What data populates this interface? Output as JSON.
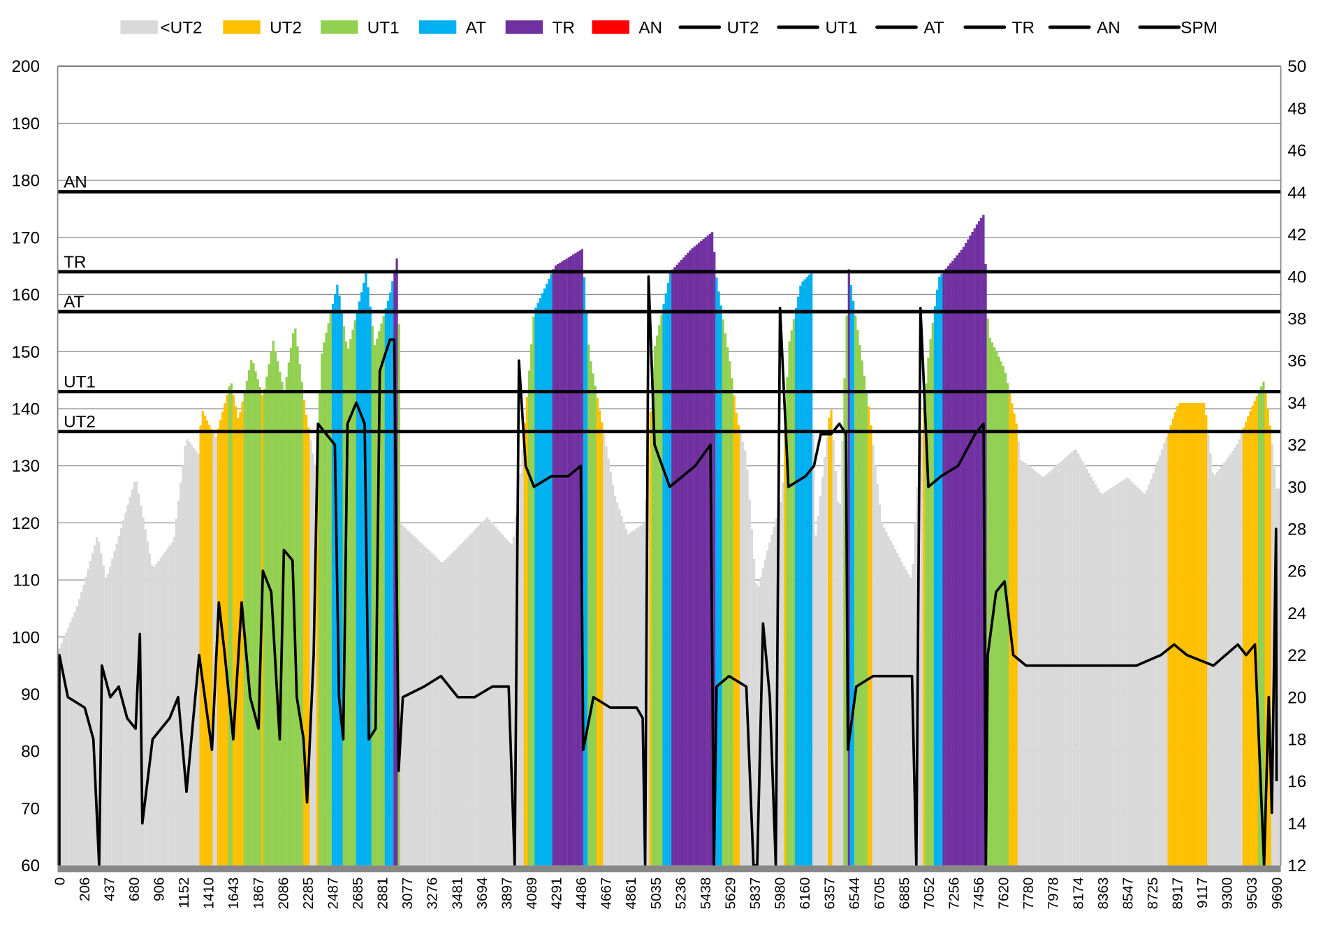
{
  "chart_data": {
    "type": "bar",
    "title": "",
    "xlabel": "",
    "ylabel": "",
    "y2label": "",
    "ylim": [
      60,
      200
    ],
    "y2lim": [
      12,
      50
    ],
    "yticks": [
      60,
      70,
      80,
      90,
      100,
      110,
      120,
      130,
      140,
      150,
      160,
      170,
      180,
      190,
      200
    ],
    "y2ticks": [
      12,
      14,
      16,
      18,
      20,
      22,
      24,
      26,
      28,
      30,
      32,
      34,
      36,
      38,
      40,
      42,
      44,
      46,
      48,
      50
    ],
    "x_tick_labels": [
      0,
      206,
      437,
      680,
      906,
      1152,
      1410,
      1643,
      1867,
      2086,
      2285,
      2487,
      2685,
      2881,
      3077,
      3276,
      3481,
      3694,
      3897,
      4089,
      4291,
      4486,
      4667,
      4861,
      5035,
      5236,
      5438,
      5629,
      5837,
      5980,
      6160,
      6357,
      6544,
      6705,
      6885,
      7052,
      7256,
      7456,
      7620,
      7780,
      7978,
      8174,
      8363,
      8547,
      8725,
      8917,
      9117,
      9300,
      9503,
      9690
    ],
    "grid": true,
    "legend_position": "top",
    "legend": [
      {
        "label": "<UT2",
        "kind": "bar",
        "color": "#d9d9d9"
      },
      {
        "label": "UT2",
        "kind": "bar",
        "color": "#ffc000"
      },
      {
        "label": "UT1",
        "kind": "bar",
        "color": "#92d050"
      },
      {
        "label": "AT",
        "kind": "bar",
        "color": "#00b0f0"
      },
      {
        "label": "TR",
        "kind": "bar",
        "color": "#7030a0"
      },
      {
        "label": "AN",
        "kind": "bar",
        "color": "#ff0000"
      },
      {
        "label": "UT2",
        "kind": "line",
        "color": "#000000"
      },
      {
        "label": "UT1",
        "kind": "line",
        "color": "#000000"
      },
      {
        "label": "AT",
        "kind": "line",
        "color": "#000000"
      },
      {
        "label": "TR",
        "kind": "line",
        "color": "#000000"
      },
      {
        "label": "AN",
        "kind": "line",
        "color": "#000000"
      },
      {
        "label": "SPM",
        "kind": "line",
        "color": "#000000"
      }
    ],
    "zone_thresholds": [
      {
        "label": "UT2",
        "value": 136
      },
      {
        "label": "UT1",
        "value": 143
      },
      {
        "label": "AT",
        "value": 157
      },
      {
        "label": "TR",
        "value": 164
      },
      {
        "label": "AN",
        "value": 178
      }
    ],
    "heart_rate": [
      [
        0,
        98
      ],
      [
        140,
        105
      ],
      [
        331,
        118
      ],
      [
        410,
        110
      ],
      [
        697,
        128
      ],
      [
        850,
        112
      ],
      [
        1054,
        117
      ],
      [
        1178,
        135
      ],
      [
        1307,
        132
      ],
      [
        1340,
        140
      ],
      [
        1480,
        135
      ],
      [
        1620,
        145
      ],
      [
        1690,
        138
      ],
      [
        1810,
        149
      ],
      [
        1910,
        142
      ],
      [
        2000,
        152
      ],
      [
        2097,
        143
      ],
      [
        2180,
        155
      ],
      [
        2265,
        140
      ],
      [
        2345,
        130
      ],
      [
        2400,
        150
      ],
      [
        2527,
        162
      ],
      [
        2606,
        150
      ],
      [
        2755,
        164
      ],
      [
        2822,
        151
      ],
      [
        2940,
        160
      ],
      [
        3010,
        168
      ],
      [
        3020,
        120
      ],
      [
        3360,
        113
      ],
      [
        3740,
        121
      ],
      [
        3945,
        116
      ],
      [
        4010,
        130
      ],
      [
        4110,
        157
      ],
      [
        4280,
        165
      ],
      [
        4496,
        168
      ],
      [
        4545,
        150
      ],
      [
        4620,
        140
      ],
      [
        4735,
        125
      ],
      [
        4840,
        118
      ],
      [
        4960,
        120
      ],
      [
        5020,
        150
      ],
      [
        5155,
        164
      ],
      [
        5326,
        168
      ],
      [
        5495,
        171
      ],
      [
        5525,
        163
      ],
      [
        5629,
        148
      ],
      [
        5690,
        138
      ],
      [
        5765,
        132
      ],
      [
        5850,
        108
      ],
      [
        5907,
        115
      ],
      [
        5998,
        125
      ],
      [
        6043,
        151
      ],
      [
        6133,
        162
      ],
      [
        6219,
        164
      ],
      [
        6240,
        116
      ],
      [
        6367,
        141
      ],
      [
        6432,
        120
      ],
      [
        6500,
        165
      ],
      [
        6560,
        155
      ],
      [
        6640,
        140
      ],
      [
        6723,
        120
      ],
      [
        6939,
        110
      ],
      [
        6970,
        125
      ],
      [
        7052,
        150
      ],
      [
        7134,
        163
      ],
      [
        7326,
        168
      ],
      [
        7490,
        174
      ],
      [
        7522,
        153
      ],
      [
        7628,
        147
      ],
      [
        7708,
        137
      ],
      [
        7732,
        131
      ],
      [
        7900,
        128
      ],
      [
        8156,
        133
      ],
      [
        8354,
        125
      ],
      [
        8547,
        128
      ],
      [
        8672,
        125
      ],
      [
        8850,
        136
      ],
      [
        8927,
        141
      ],
      [
        9137,
        141
      ],
      [
        9200,
        128
      ],
      [
        9390,
        134
      ],
      [
        9460,
        138
      ],
      [
        9597,
        145
      ],
      [
        9653,
        135
      ],
      [
        9690,
        126
      ]
    ],
    "spm": [
      [
        0,
        12
      ],
      [
        0,
        22
      ],
      [
        70,
        20
      ],
      [
        211,
        19.5
      ],
      [
        291,
        18
      ],
      [
        345,
        12
      ],
      [
        370,
        21.5
      ],
      [
        449,
        20
      ],
      [
        532,
        20.5
      ],
      [
        614,
        19
      ],
      [
        696,
        18.5
      ],
      [
        734,
        23
      ],
      [
        757,
        14
      ],
      [
        850,
        18
      ],
      [
        1014,
        19
      ],
      [
        1098,
        20
      ],
      [
        1183,
        15.5
      ],
      [
        1314,
        22
      ],
      [
        1443,
        17.5
      ],
      [
        1508,
        24.5
      ],
      [
        1564,
        22
      ],
      [
        1643,
        18
      ],
      [
        1719,
        24.5
      ],
      [
        1795,
        20
      ],
      [
        1871,
        18.5
      ],
      [
        1909,
        26
      ],
      [
        1983,
        25
      ],
      [
        2058,
        18
      ],
      [
        2094,
        27
      ],
      [
        2163,
        26.5
      ],
      [
        2197,
        20
      ],
      [
        2251,
        18
      ],
      [
        2279,
        15
      ],
      [
        2333,
        22
      ],
      [
        2368,
        33
      ],
      [
        2436,
        32.5
      ],
      [
        2505,
        32
      ],
      [
        2538,
        20
      ],
      [
        2572,
        18
      ],
      [
        2606,
        33
      ],
      [
        2676,
        34
      ],
      [
        2742,
        33
      ],
      [
        2775,
        18
      ],
      [
        2828,
        18.5
      ],
      [
        2861,
        35.5
      ],
      [
        2942,
        37
      ],
      [
        2975,
        37
      ],
      [
        3010,
        16.5
      ],
      [
        3043,
        20
      ],
      [
        3212,
        20.5
      ],
      [
        3350,
        21
      ],
      [
        3490,
        20
      ],
      [
        3634,
        20
      ],
      [
        3780,
        20.5
      ],
      [
        3914,
        20.5
      ],
      [
        3960,
        12
      ],
      [
        3993,
        36
      ],
      [
        4045,
        31
      ],
      [
        4111,
        30
      ],
      [
        4251,
        30.5
      ],
      [
        4385,
        30.5
      ],
      [
        4484,
        31
      ],
      [
        4502,
        17.5
      ],
      [
        4576,
        20
      ],
      [
        4702,
        19.5
      ],
      [
        4903,
        19.5
      ],
      [
        4945,
        19
      ],
      [
        4962,
        12
      ],
      [
        4986,
        40
      ],
      [
        5028,
        32
      ],
      [
        5150,
        30
      ],
      [
        5357,
        31
      ],
      [
        5478,
        32
      ],
      [
        5505,
        12
      ],
      [
        5525,
        20.5
      ],
      [
        5621,
        21
      ],
      [
        5765,
        20.5
      ],
      [
        5825,
        12
      ],
      [
        5850,
        12
      ],
      [
        5884,
        23.5
      ],
      [
        5923,
        20
      ],
      [
        5957,
        12
      ],
      [
        5982,
        38.5
      ],
      [
        6043,
        30
      ],
      [
        6166,
        30.5
      ],
      [
        6235,
        31
      ],
      [
        6288,
        32.5
      ],
      [
        6368,
        32.5
      ],
      [
        6432,
        33
      ],
      [
        6482,
        32.5
      ],
      [
        6496,
        17.5
      ],
      [
        6557,
        20.5
      ],
      [
        6666,
        21
      ],
      [
        6847,
        21
      ],
      [
        6939,
        21
      ],
      [
        6968,
        12
      ],
      [
        6996,
        38.5
      ],
      [
        7049,
        30
      ],
      [
        7152,
        30.5
      ],
      [
        7292,
        31
      ],
      [
        7428,
        32.5
      ],
      [
        7489,
        33
      ],
      [
        7505,
        12
      ],
      [
        7517,
        22
      ],
      [
        7572,
        25
      ],
      [
        7628,
        25.5
      ],
      [
        7684,
        22
      ],
      [
        7766,
        21.5
      ],
      [
        8031,
        21.5
      ],
      [
        8360,
        21.5
      ],
      [
        8610,
        21.5
      ],
      [
        8791,
        22
      ],
      [
        8893,
        22.5
      ],
      [
        8995,
        22
      ],
      [
        9201,
        21.5
      ],
      [
        9389,
        22.5
      ],
      [
        9458,
        22
      ],
      [
        9527,
        22.5
      ],
      [
        9596,
        12
      ],
      [
        9631,
        20
      ],
      [
        9654,
        14.5
      ],
      [
        9686,
        28
      ],
      [
        9690,
        16
      ]
    ]
  }
}
